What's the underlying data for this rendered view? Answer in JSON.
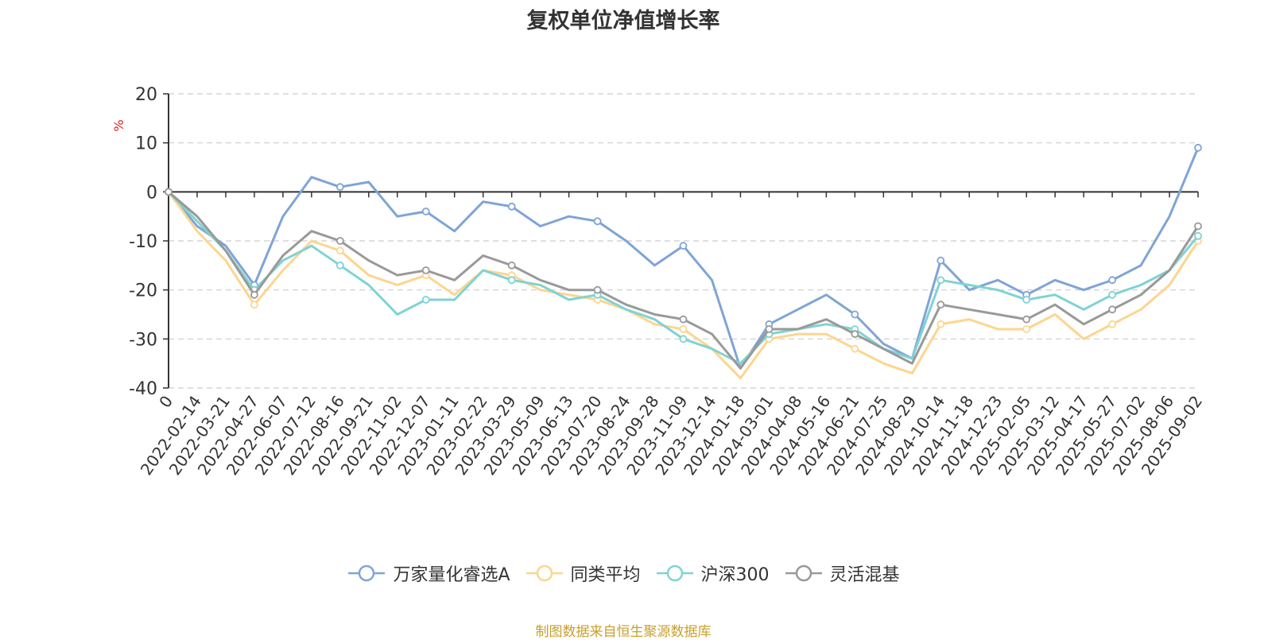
{
  "title": "复权单位净值增长率",
  "source_note": "制图数据来自恒生聚源数据库",
  "colors": {
    "grid": "#cccccc",
    "axis": "#333333",
    "unit": "#e02020"
  },
  "chart_data": {
    "type": "line",
    "title": "复权单位净值增长率",
    "ylabel": "%",
    "ylim": [
      -40,
      20
    ],
    "yticks": [
      -40,
      -30,
      -20,
      -10,
      0,
      10,
      20
    ],
    "grid": true,
    "legend_position": "bottom",
    "x_labels": [
      "0",
      "2022-02-14",
      "2022-03-21",
      "2022-04-27",
      "2022-06-07",
      "2022-07-12",
      "2022-08-16",
      "2022-09-21",
      "2022-11-02",
      "2022-12-07",
      "2023-01-11",
      "2023-02-22",
      "2023-03-29",
      "2023-05-09",
      "2023-06-13",
      "2023-07-20",
      "2023-08-24",
      "2023-09-28",
      "2023-11-09",
      "2023-12-14",
      "2024-01-18",
      "2024-03-01",
      "2024-04-08",
      "2024-05-16",
      "2024-06-21",
      "2024-07-25",
      "2024-08-29",
      "2024-10-14",
      "2024-11-18",
      "2024-12-23",
      "2025-02-05",
      "2025-03-12",
      "2025-04-17",
      "2025-05-27",
      "2025-07-02",
      "2025-08-06",
      "2025-09-02"
    ],
    "series": [
      {
        "name": "万家量化睿选A",
        "color": "#7fa4d6",
        "values": [
          0,
          -7,
          -11,
          -19,
          -5,
          3,
          1,
          2,
          -5,
          -4,
          -8,
          -2,
          -3,
          -7,
          -5,
          -6,
          -10,
          -15,
          -11,
          -18,
          -36,
          -27,
          -24,
          -21,
          -25,
          -31,
          -34,
          -14,
          -20,
          -18,
          -21,
          -18,
          -20,
          -18,
          -15,
          -5,
          9
        ]
      },
      {
        "name": "同类平均",
        "color": "#fdd58e",
        "values": [
          0,
          -8,
          -14,
          -23,
          -16,
          -10,
          -12,
          -17,
          -19,
          -17,
          -21,
          -16,
          -17,
          -20,
          -21,
          -22,
          -24,
          -27,
          -28,
          -32,
          -38,
          -30,
          -29,
          -29,
          -32,
          -35,
          -37,
          -27,
          -26,
          -28,
          -28,
          -25,
          -30,
          -27,
          -24,
          -19,
          -10
        ]
      },
      {
        "name": "沪深300",
        "color": "#7fd3d3",
        "values": [
          0,
          -6,
          -12,
          -20,
          -14,
          -11,
          -15,
          -19,
          -25,
          -22,
          -22,
          -16,
          -18,
          -19,
          -22,
          -21,
          -24,
          -26,
          -30,
          -32,
          -35,
          -29,
          -28,
          -27,
          -28,
          -32,
          -34,
          -18,
          -19,
          -20,
          -22,
          -21,
          -24,
          -21,
          -19,
          -16,
          -9
        ]
      },
      {
        "name": "灵活混基",
        "color": "#999999",
        "values": [
          0,
          -5,
          -12,
          -21,
          -13,
          -8,
          -10,
          -14,
          -17,
          -16,
          -18,
          -13,
          -15,
          -18,
          -20,
          -20,
          -23,
          -25,
          -26,
          -29,
          -36,
          -28,
          -28,
          -26,
          -29,
          -32,
          -35,
          -23,
          -24,
          -25,
          -26,
          -23,
          -27,
          -24,
          -21,
          -16,
          -7
        ]
      }
    ]
  }
}
